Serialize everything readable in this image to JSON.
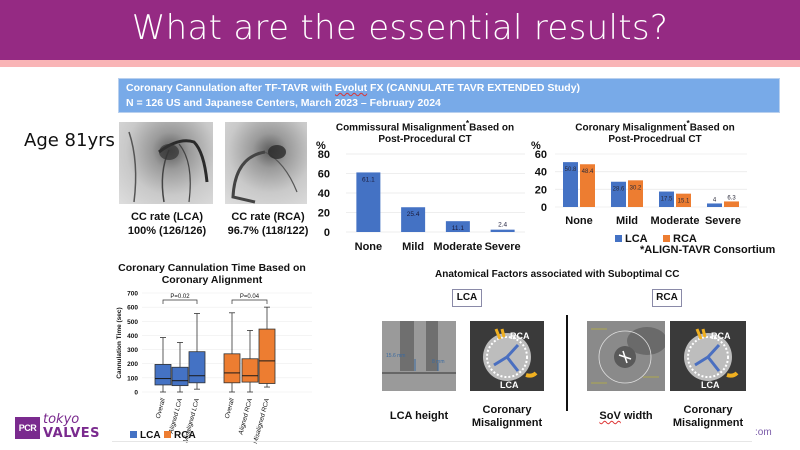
{
  "header": {
    "title": "What are the essential results?",
    "colors": {
      "header_bg": "#952a83",
      "stripe": "#f9b4b6",
      "banner_bg": "#78aae8"
    }
  },
  "banner": {
    "line1_pre": "Coronary Cannulation after TF-TAVR with ",
    "line1_flag": "Evolut",
    "line1_post": " FX (CANNULATE TAVR EXTENDED Study)",
    "line2": "N = 126 US and Japanese Centers, March 2023 – February 2024"
  },
  "patient": {
    "age_label": "Age 81yrs"
  },
  "cc_rates": [
    {
      "title": "CC rate (LCA)",
      "value": "100% (126/126)"
    },
    {
      "title": "CC rate (RCA)",
      "value": "96.7% (118/122)"
    }
  ],
  "footnote": "*ALIGN-TAVR Consortium",
  "anatomical": {
    "title": "Anatomical Factors associated with Suboptimal CC",
    "lca_tag": "LCA",
    "rca_tag": "RCA",
    "images": [
      {
        "caption": "LCA height",
        "measure1": "15.6 mm",
        "measure2": "8 mm"
      },
      {
        "caption_l1": "Coronary",
        "caption_l2": "Misalignment",
        "rca": "RCA",
        "lca": "LCA"
      },
      {
        "caption_pre": "",
        "caption_flag": "SoV",
        "caption_post": " width"
      },
      {
        "caption_l1": "Coronary",
        "caption_l2": "Misalignment",
        "rca": "RCA",
        "lca": "LCA"
      }
    ]
  },
  "logo": {
    "box": "PCR",
    "tokyo": "tokyo",
    "valves": "VALVES"
  },
  "url_fragment": ":om",
  "chart_data": [
    {
      "type": "bar",
      "title": "Commissural  Misalignment*Based on Post-Procedural CT",
      "title_l1": "Commissural  Misalignment",
      "title_star": "*",
      "title_l1b": "Based on",
      "title_l2": "Post-Procedural CT",
      "ylabel": "%",
      "ylim": [
        0,
        80
      ],
      "yticks": [
        0,
        20,
        40,
        60,
        80
      ],
      "categories": [
        "None",
        "Mild",
        "Moderate",
        "Severe"
      ],
      "values": [
        61.1,
        25.4,
        11.1,
        2.4
      ],
      "value_labels": [
        "61.1",
        "25.4",
        "11.1",
        "2.4"
      ],
      "color": "#4472c4",
      "grid": true
    },
    {
      "type": "bar",
      "title": "Coronary Misalignment*Based on Post-Procedrual CT",
      "title_l1": "Coronary Misalignment",
      "title_star": "*",
      "title_l1b": "Based on",
      "title_l2": "Post-Procedrual CT",
      "ylabel": "%",
      "ylim": [
        0,
        60
      ],
      "yticks": [
        0,
        20,
        40,
        60
      ],
      "categories": [
        "None",
        "Mild",
        "Moderate",
        "Severe"
      ],
      "series": [
        {
          "name": "LCA",
          "values": [
            50.8,
            28.6,
            17.5,
            4
          ],
          "labels": [
            "50.8",
            "28.6",
            "17.5",
            "4"
          ],
          "color": "#4472c4"
        },
        {
          "name": "RCA",
          "values": [
            48.4,
            30.2,
            15.1,
            6.3
          ],
          "labels": [
            "48.4",
            "30.2",
            "15.1",
            "6.3"
          ],
          "color": "#ed7d31"
        }
      ],
      "legend": "bottom",
      "grid": true
    },
    {
      "type": "box",
      "title": "Coronary Cannulation Time Based on Coronary Alignment",
      "title_l1": "Coronary Cannulation Time Based on",
      "title_l2": "Coronary Alignment",
      "ylabel": "Cannulation Time (sec)",
      "ylim": [
        0,
        700
      ],
      "yticks": [
        0,
        100,
        200,
        300,
        400,
        500,
        600,
        700
      ],
      "groups": [
        {
          "name": "LCA",
          "color": "#4472c4",
          "pvalue": "P=0.02",
          "boxes": [
            {
              "label": "Overall",
              "min": 0,
              "q1": 50,
              "median": 95,
              "q3": 195,
              "max": 385
            },
            {
              "label": "Aligned LCA",
              "min": 0,
              "q1": 45,
              "median": 80,
              "q3": 175,
              "max": 350
            },
            {
              "label": "Misaligned LCA",
              "min": 20,
              "q1": 65,
              "median": 115,
              "q3": 285,
              "max": 555
            }
          ]
        },
        {
          "name": "RCA",
          "color": "#ed7d31",
          "pvalue": "P=0.04",
          "boxes": [
            {
              "label": "Overall",
              "min": 0,
              "q1": 65,
              "median": 135,
              "q3": 270,
              "max": 560
            },
            {
              "label": "Aligned RCA",
              "min": 0,
              "q1": 70,
              "median": 115,
              "q3": 235,
              "max": 435
            },
            {
              "label": "Misaligned RCA",
              "min": 35,
              "q1": 60,
              "median": 220,
              "q3": 445,
              "max": 600
            }
          ]
        }
      ],
      "legend": [
        "LCA",
        "RCA"
      ],
      "legend_position": "bottom-left",
      "grid": true
    }
  ]
}
